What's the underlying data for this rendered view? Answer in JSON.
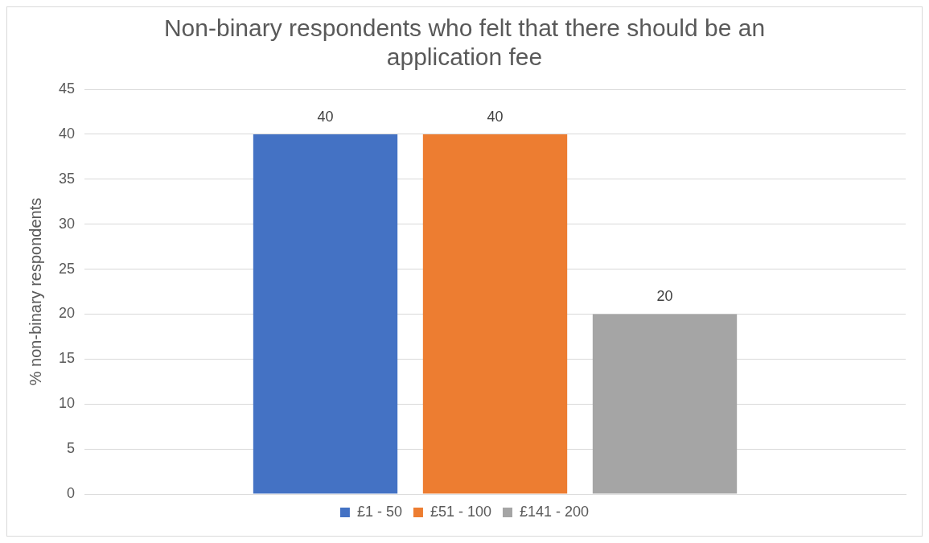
{
  "chart_data": {
    "type": "bar",
    "title": "Non-binary respondents who felt that there should be an application fee",
    "ylabel": "% non-binary respondents",
    "categories": [
      null
    ],
    "series": [
      {
        "name": "£1 - 50",
        "color": "#4472c4",
        "values": [
          40
        ]
      },
      {
        "name": "£51 - 100",
        "color": "#ed7d31",
        "values": [
          40
        ]
      },
      {
        "name": "£141 - 200",
        "color": "#a5a5a5",
        "values": [
          20
        ]
      }
    ],
    "ylim": [
      0,
      45
    ],
    "yticks": [
      0,
      5,
      10,
      15,
      20,
      25,
      30,
      35,
      40,
      45
    ],
    "grid": "y",
    "legend": "bottom",
    "data_labels": true
  }
}
